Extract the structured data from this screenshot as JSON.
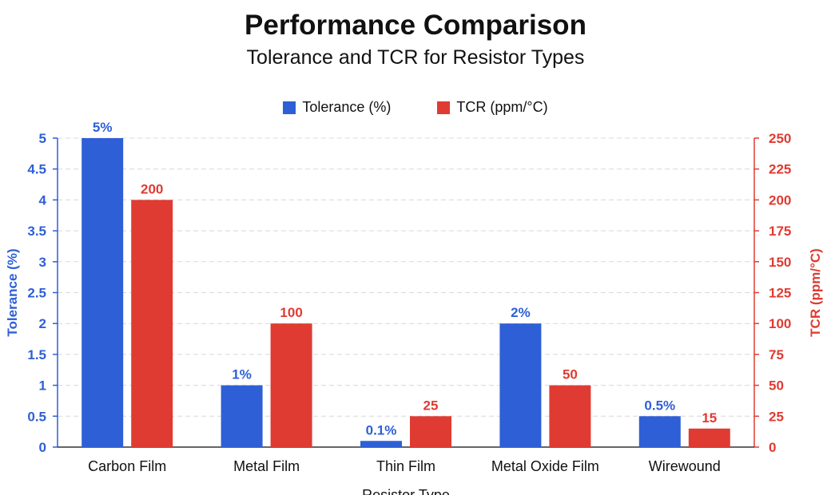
{
  "chart_data": {
    "type": "bar",
    "title": "Performance Comparison",
    "subtitle": "Tolerance and TCR for Resistor Types",
    "xlabel": "Resistor Type",
    "ylabel_left": "Tolerance (%)",
    "ylabel_right": "TCR (ppm/°C)",
    "categories": [
      "Carbon Film",
      "Metal Film",
      "Thin Film",
      "Metal Oxide Film",
      "Wirewound"
    ],
    "series": [
      {
        "name": "Tolerance (%)",
        "axis": "left",
        "color": "#2e5fd6",
        "values": [
          5,
          1,
          0.1,
          2,
          0.5
        ],
        "labels": [
          "5%",
          "1%",
          "0.1%",
          "2%",
          "0.5%"
        ]
      },
      {
        "name": "TCR (ppm/°C)",
        "axis": "right",
        "color": "#e03b32",
        "values": [
          200,
          100,
          25,
          50,
          15
        ],
        "labels": [
          "200",
          "100",
          "25",
          "50",
          "15"
        ]
      }
    ],
    "ylim_left": [
      0,
      5
    ],
    "ylim_right": [
      0,
      250
    ],
    "left_ticks": [
      "0",
      "0.5",
      "1",
      "1.5",
      "2",
      "2.5",
      "3",
      "3.5",
      "4",
      "4.5",
      "5"
    ],
    "right_ticks": [
      "0",
      "25",
      "50",
      "75",
      "100",
      "125",
      "150",
      "175",
      "200",
      "225",
      "250"
    ],
    "grid": true,
    "legend_position": "top-center"
  },
  "colors": {
    "left_axis": "#2e5fd6",
    "right_axis": "#e03b32",
    "grid": "#d8d8d8"
  }
}
